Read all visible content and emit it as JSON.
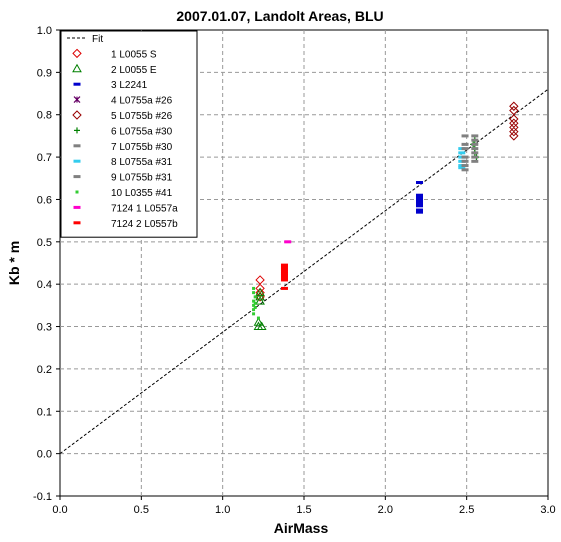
{
  "chart_data": {
    "type": "scatter",
    "title": "2007.01.07, Landolt Areas, BLU",
    "xlabel": "AirMass",
    "ylabel": "Kb * m",
    "xlim": [
      0.0,
      3.0
    ],
    "ylim": [
      -0.1,
      1.0
    ],
    "x_ticks": [
      "0.0",
      "0.5",
      "1.0",
      "1.5",
      "2.0",
      "2.5",
      "3.0"
    ],
    "y_ticks": [
      "-0.1",
      "0.0",
      "0.1",
      "0.2",
      "0.3",
      "0.4",
      "0.5",
      "0.6",
      "0.7",
      "0.8",
      "0.9",
      "1.0"
    ],
    "grid": "dashed",
    "legend_position": "top-left",
    "fit": {
      "name": "Fit",
      "x": [
        0.0,
        3.0
      ],
      "y": [
        0.0,
        0.86
      ],
      "color": "#000000",
      "style": "dashed"
    },
    "series": [
      {
        "name": "1 L0055 S",
        "marker": "diamond-open",
        "color": "#dd0000",
        "points": [
          [
            1.23,
            0.41
          ],
          [
            1.23,
            0.39
          ],
          [
            1.23,
            0.38
          ],
          [
            1.23,
            0.37
          ]
        ]
      },
      {
        "name": "2 L0055 E",
        "marker": "triangle-open",
        "color": "#008000",
        "points": [
          [
            1.22,
            0.31
          ],
          [
            1.22,
            0.3
          ],
          [
            1.24,
            0.3
          ],
          [
            1.23,
            0.38
          ],
          [
            1.23,
            0.36
          ],
          [
            1.23,
            0.37
          ]
        ]
      },
      {
        "name": "3 L2241",
        "marker": "dash",
        "color": "#0000cc",
        "points": [
          [
            2.21,
            0.64
          ],
          [
            2.21,
            0.61
          ],
          [
            2.21,
            0.605
          ],
          [
            2.21,
            0.6
          ],
          [
            2.21,
            0.595
          ],
          [
            2.21,
            0.59
          ],
          [
            2.21,
            0.585
          ],
          [
            2.21,
            0.575
          ],
          [
            2.21,
            0.57
          ]
        ]
      },
      {
        "name": "4 L0755a #26",
        "marker": "asterisk",
        "color": "#660066",
        "points": []
      },
      {
        "name": "5 L0755b #26",
        "marker": "diamond-open",
        "color": "#990000",
        "points": [
          [
            2.79,
            0.82
          ],
          [
            2.79,
            0.81
          ],
          [
            2.79,
            0.79
          ],
          [
            2.79,
            0.78
          ],
          [
            2.79,
            0.77
          ],
          [
            2.79,
            0.76
          ],
          [
            2.79,
            0.75
          ]
        ]
      },
      {
        "name": "6 L0755a #30",
        "marker": "plus",
        "color": "#008000",
        "points": [
          [
            2.55,
            0.74
          ],
          [
            2.55,
            0.72
          ],
          [
            2.56,
            0.7
          ],
          [
            2.55,
            0.71
          ],
          [
            2.54,
            0.73
          ]
        ]
      },
      {
        "name": "7 L0755b #30",
        "marker": "dash",
        "color": "#808080",
        "points": [
          [
            2.55,
            0.75
          ],
          [
            2.55,
            0.74
          ],
          [
            2.55,
            0.73
          ],
          [
            2.55,
            0.72
          ],
          [
            2.55,
            0.71
          ],
          [
            2.55,
            0.7
          ],
          [
            2.55,
            0.69
          ]
        ]
      },
      {
        "name": "8 L0755a #31",
        "marker": "dash",
        "color": "#33ccee",
        "points": [
          [
            2.47,
            0.72
          ],
          [
            2.47,
            0.71
          ],
          [
            2.47,
            0.7
          ],
          [
            2.47,
            0.69
          ],
          [
            2.47,
            0.68
          ],
          [
            2.47,
            0.675
          ]
        ]
      },
      {
        "name": "9 L0755b #31",
        "marker": "dash",
        "color": "#808080",
        "points": [
          [
            2.49,
            0.75
          ],
          [
            2.49,
            0.73
          ],
          [
            2.49,
            0.72
          ],
          [
            2.49,
            0.7
          ],
          [
            2.49,
            0.69
          ],
          [
            2.49,
            0.68
          ],
          [
            2.49,
            0.67
          ]
        ]
      },
      {
        "name": "10 L0355 #41",
        "marker": "dot",
        "color": "#33cc33",
        "points": [
          [
            1.19,
            0.39
          ],
          [
            1.19,
            0.38
          ],
          [
            1.2,
            0.37
          ],
          [
            1.19,
            0.36
          ],
          [
            1.2,
            0.355
          ],
          [
            1.19,
            0.35
          ],
          [
            1.2,
            0.345
          ],
          [
            1.19,
            0.34
          ],
          [
            1.19,
            0.33
          ],
          [
            1.22,
            0.32
          ]
        ]
      },
      {
        "name": "7124 1 L0557a",
        "marker": "dash",
        "color": "#ff00cc",
        "points": [
          [
            1.4,
            0.5
          ]
        ]
      },
      {
        "name": "7124 2 L0557b",
        "marker": "dash",
        "color": "#ff0000",
        "points": [
          [
            1.38,
            0.445
          ],
          [
            1.38,
            0.44
          ],
          [
            1.38,
            0.435
          ],
          [
            1.38,
            0.43
          ],
          [
            1.38,
            0.425
          ],
          [
            1.38,
            0.42
          ],
          [
            1.38,
            0.415
          ],
          [
            1.38,
            0.41
          ],
          [
            1.38,
            0.39
          ]
        ]
      }
    ]
  }
}
